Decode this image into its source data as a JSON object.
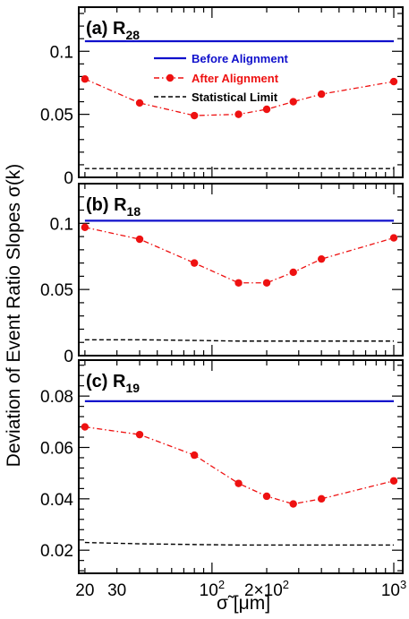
{
  "figure": {
    "ylabel": "Deviation of Event Ratio Slopes σ(k)",
    "xlabel": "σ̃ [μm]",
    "x_ticks": [
      {
        "value": 20,
        "label": "20",
        "sup": ""
      },
      {
        "value": 30,
        "label": "30",
        "sup": ""
      },
      {
        "value": 100,
        "label": "10",
        "sup": "2"
      },
      {
        "value": 200,
        "label": "2×10",
        "sup": "2"
      },
      {
        "value": 1000,
        "label": "10",
        "sup": "3"
      }
    ],
    "xlim": [
      18.5,
      1120
    ],
    "x_scale": "log"
  },
  "legend": {
    "before": "Before Alignment",
    "after": "After Alignment",
    "stat": "Statistical Limit"
  },
  "colors": {
    "before": "#1010cc",
    "after": "#ee1111",
    "stat": "#000000"
  },
  "chart_data": [
    {
      "type": "line",
      "panel": "(a)",
      "title_main": "R",
      "title_sub": "28",
      "ylim": [
        0,
        0.135
      ],
      "yticks": [
        {
          "value": 0,
          "label": "0"
        },
        {
          "value": 0.05,
          "label": "0.05"
        },
        {
          "value": 0.1,
          "label": "0.1"
        }
      ],
      "x": [
        20,
        40,
        80,
        140,
        200,
        280,
        400,
        1000
      ],
      "series": [
        {
          "name": "Before Alignment",
          "key": "before",
          "values": [
            0.108,
            0.108,
            0.108,
            0.108,
            0.108,
            0.108,
            0.108,
            0.108
          ]
        },
        {
          "name": "After Alignment",
          "key": "after",
          "values": [
            0.078,
            0.059,
            0.049,
            0.05,
            0.054,
            0.06,
            0.066,
            0.076
          ]
        },
        {
          "name": "Statistical Limit",
          "key": "stat",
          "values": [
            0.007,
            0.007,
            0.007,
            0.007,
            0.007,
            0.007,
            0.007,
            0.007
          ]
        }
      ]
    },
    {
      "type": "line",
      "panel": "(b)",
      "title_main": "R",
      "title_sub": "18",
      "ylim": [
        0,
        0.13
      ],
      "yticks": [
        {
          "value": 0,
          "label": "0"
        },
        {
          "value": 0.05,
          "label": "0.05"
        },
        {
          "value": 0.1,
          "label": "0.1"
        }
      ],
      "x": [
        20,
        40,
        80,
        140,
        200,
        280,
        400,
        1000
      ],
      "series": [
        {
          "name": "Before Alignment",
          "key": "before",
          "values": [
            0.102,
            0.102,
            0.102,
            0.102,
            0.102,
            0.102,
            0.102,
            0.102
          ]
        },
        {
          "name": "After Alignment",
          "key": "after",
          "values": [
            0.097,
            0.088,
            0.07,
            0.055,
            0.055,
            0.063,
            0.073,
            0.089
          ]
        },
        {
          "name": "Statistical Limit",
          "key": "stat",
          "values": [
            0.012,
            0.012,
            0.0115,
            0.011,
            0.011,
            0.011,
            0.011,
            0.011
          ]
        }
      ]
    },
    {
      "type": "line",
      "panel": "(c)",
      "title_main": "R",
      "title_sub": "19",
      "ylim": [
        0.011,
        0.094
      ],
      "yticks": [
        {
          "value": 0.02,
          "label": "0.02"
        },
        {
          "value": 0.04,
          "label": "0.04"
        },
        {
          "value": 0.06,
          "label": "0.06"
        },
        {
          "value": 0.08,
          "label": "0.08"
        }
      ],
      "x": [
        20,
        40,
        80,
        140,
        200,
        280,
        400,
        1000
      ],
      "series": [
        {
          "name": "Before Alignment",
          "key": "before",
          "values": [
            0.078,
            0.078,
            0.078,
            0.078,
            0.078,
            0.078,
            0.078,
            0.078
          ]
        },
        {
          "name": "After Alignment",
          "key": "after",
          "values": [
            0.068,
            0.065,
            0.057,
            0.046,
            0.041,
            0.038,
            0.04,
            0.047
          ]
        },
        {
          "name": "Statistical Limit",
          "key": "stat",
          "values": [
            0.023,
            0.0225,
            0.0222,
            0.022,
            0.022,
            0.022,
            0.022,
            0.022
          ]
        }
      ]
    }
  ]
}
